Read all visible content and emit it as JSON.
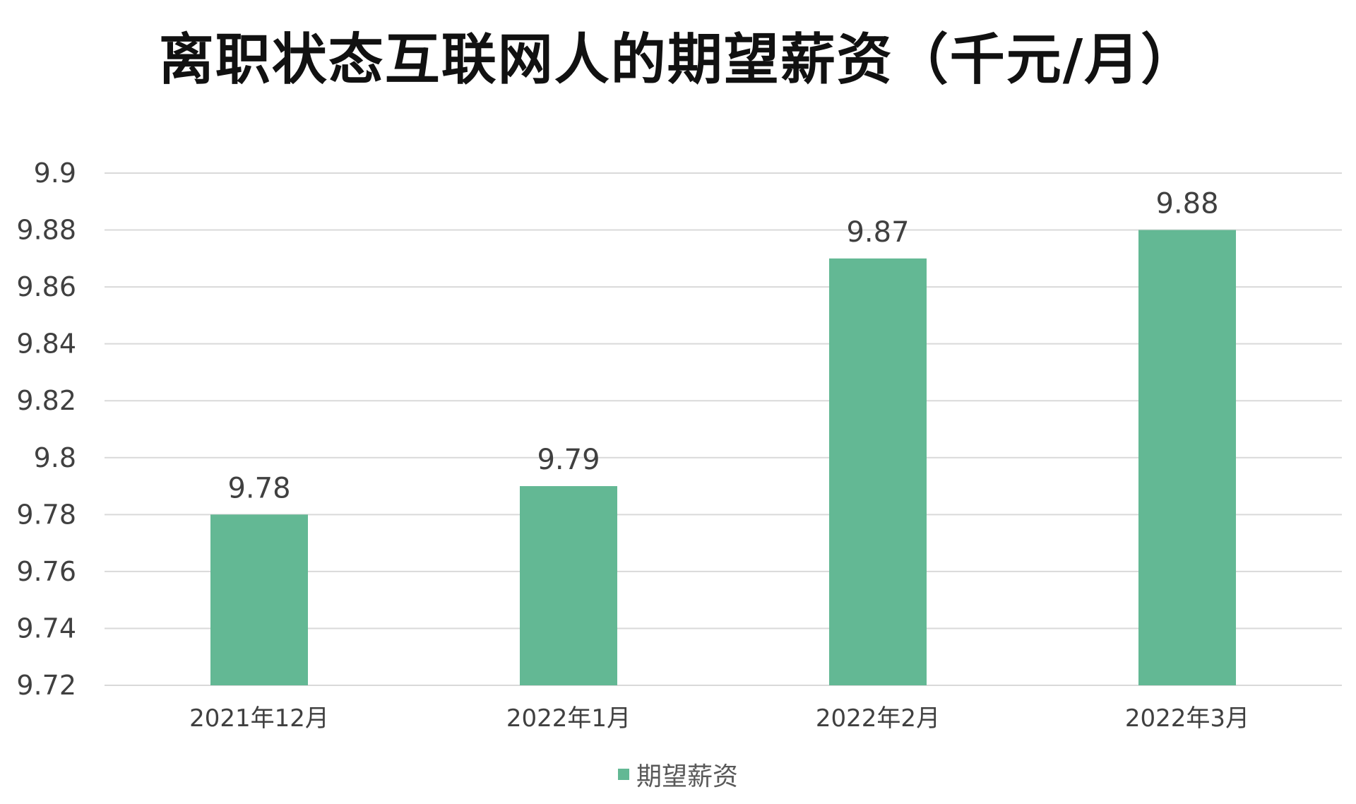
{
  "chart_data": {
    "type": "bar",
    "title": "离职状态互联网人的期望薪资（千元/月）",
    "categories": [
      "2021年12月",
      "2022年1月",
      "2022年2月",
      "2022年3月"
    ],
    "series": [
      {
        "name": "期望薪资",
        "values": [
          9.78,
          9.79,
          9.87,
          9.88
        ],
        "data_labels": [
          "9.78",
          "9.79",
          "9.87",
          "9.88"
        ]
      }
    ],
    "ylim": [
      9.72,
      9.9
    ],
    "yticks": [
      "9.72",
      "9.74",
      "9.76",
      "9.78",
      "9.8",
      "9.82",
      "9.84",
      "9.86",
      "9.88",
      "9.9"
    ],
    "grid": true,
    "legend_position": "bottom",
    "colors": {
      "bar": "#63b894",
      "grid": "#d9d9d9",
      "text": "#404040"
    }
  }
}
